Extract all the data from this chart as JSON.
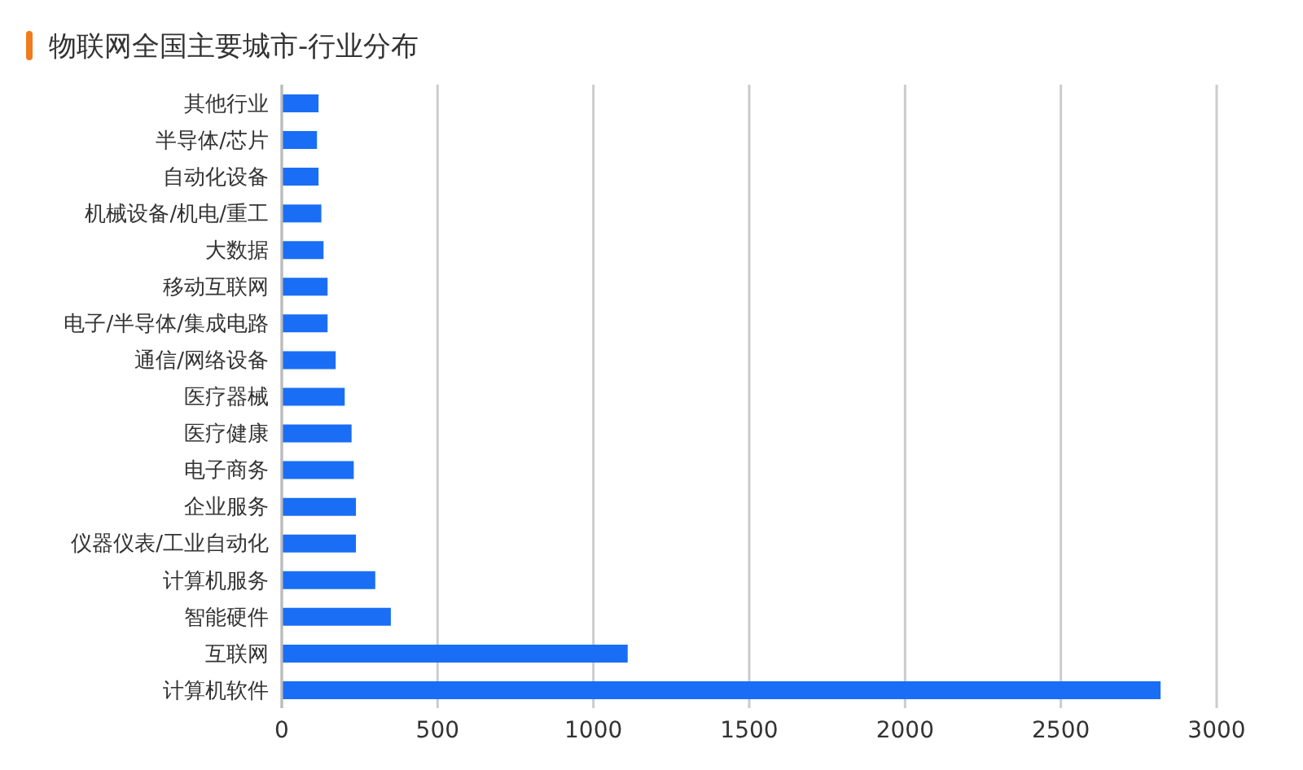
{
  "chart_data": {
    "type": "bar",
    "orientation": "horizontal",
    "title": "物联网全国主要城市-行业分布",
    "categories": [
      "其他行业",
      "半导体/芯片",
      "自动化设备",
      "机械设备/机电/重工",
      "大数据",
      "移动互联网",
      "电子/半导体/集成电路",
      "通信/网络设备",
      "医疗器械",
      "医疗健康",
      "电子商务",
      "企业服务",
      "仪器仪表/工业自动化",
      "计算机服务",
      "智能硬件",
      "互联网",
      "计算机软件"
    ],
    "values": [
      118,
      113,
      118,
      127,
      134,
      147,
      147,
      173,
      202,
      224,
      231,
      238,
      238,
      300,
      350,
      1110,
      2820
    ],
    "color": "#1a6ef5",
    "xlim": [
      0,
      3000
    ],
    "xticks": [
      0,
      500,
      1000,
      1500,
      2000,
      2500,
      3000
    ],
    "grid": "x",
    "legend": false
  }
}
